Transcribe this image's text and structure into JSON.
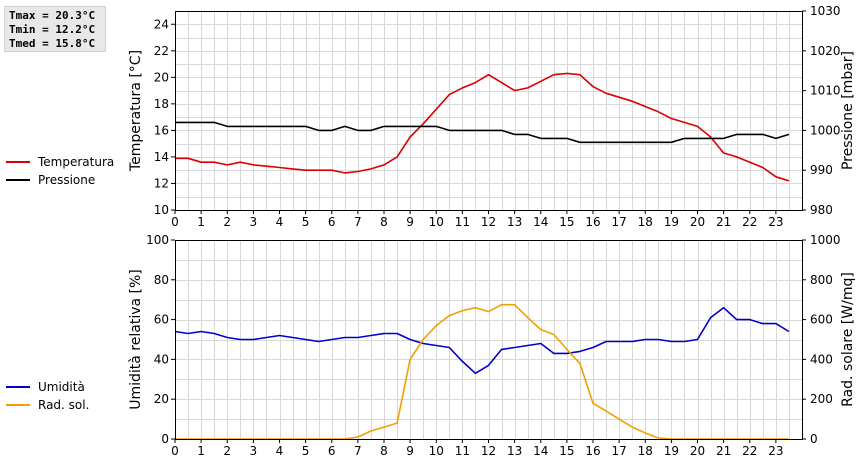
{
  "stats": {
    "tmax": "Tmax = 20.3°C",
    "tmin": "Tmin = 12.2°C",
    "tmed": "Tmed = 15.8°C"
  },
  "colors": {
    "temperature": "#dd0000",
    "pressure": "#000000",
    "humidity": "#0000cc",
    "radiation": "#f0a000",
    "grid": "#d8d8d8"
  },
  "chart_data": [
    {
      "type": "line",
      "xlabel": "",
      "ylabel": "Temperatura [°C]",
      "ylabel_right": "Pressione [mbar]",
      "xlim": [
        0,
        24
      ],
      "ylim": [
        10,
        25
      ],
      "ylim_right": [
        980,
        1030
      ],
      "xticks": [
        "0",
        "1",
        "2",
        "3",
        "4",
        "5",
        "6",
        "7",
        "8",
        "9",
        "10",
        "11",
        "12",
        "13",
        "14",
        "15",
        "16",
        "17",
        "18",
        "19",
        "20",
        "21",
        "22",
        "23"
      ],
      "yticks": [
        "10",
        "12",
        "14",
        "16",
        "18",
        "20",
        "22",
        "24"
      ],
      "yticks_right": [
        "980",
        "990",
        "1000",
        "1010",
        "1020",
        "1030"
      ],
      "grid": true,
      "legend_position": "left",
      "series": [
        {
          "name": "Temperatura",
          "axis": "left",
          "color": "#dd0000",
          "x": [
            0,
            0.5,
            1,
            1.5,
            2,
            2.5,
            3,
            3.5,
            4,
            4.5,
            5,
            5.5,
            6,
            6.5,
            7,
            7.5,
            8,
            8.5,
            9,
            9.5,
            10,
            10.5,
            11,
            11.5,
            12,
            12.5,
            13,
            13.5,
            14,
            14.5,
            15,
            15.5,
            16,
            16.5,
            17,
            17.5,
            18,
            18.5,
            19,
            19.5,
            20,
            20.5,
            21,
            21.5,
            22,
            22.5,
            23,
            23.5
          ],
          "values": [
            13.9,
            13.9,
            13.6,
            13.6,
            13.4,
            13.6,
            13.4,
            13.3,
            13.2,
            13.1,
            13.0,
            13.0,
            13.0,
            12.8,
            12.9,
            13.1,
            13.4,
            14.0,
            15.5,
            16.5,
            17.6,
            18.7,
            19.2,
            19.6,
            20.2,
            19.6,
            19.0,
            19.2,
            19.7,
            20.2,
            20.3,
            20.2,
            19.3,
            18.8,
            18.5,
            18.2,
            17.8,
            17.4,
            16.9,
            16.6,
            16.3,
            15.5,
            14.3,
            14.0,
            13.6,
            13.2,
            12.5,
            12.2
          ]
        },
        {
          "name": "Pressione",
          "axis": "right",
          "color": "#000000",
          "x": [
            0,
            0.5,
            1,
            1.5,
            2,
            2.5,
            3,
            3.5,
            4,
            4.5,
            5,
            5.5,
            6,
            6.5,
            7,
            7.5,
            8,
            8.5,
            9,
            9.5,
            10,
            10.5,
            11,
            11.5,
            12,
            12.5,
            13,
            13.5,
            14,
            14.5,
            15,
            15.5,
            16,
            16.5,
            17,
            17.5,
            18,
            18.5,
            19,
            19.5,
            20,
            20.5,
            21,
            21.5,
            22,
            22.5,
            23,
            23.5
          ],
          "values": [
            1002,
            1002,
            1002,
            1002,
            1001,
            1001,
            1001,
            1001,
            1001,
            1001,
            1001,
            1000,
            1000,
            1001,
            1000,
            1000,
            1001,
            1001,
            1001,
            1001,
            1001,
            1000,
            1000,
            1000,
            1000,
            1000,
            999,
            999,
            998,
            998,
            998,
            997,
            997,
            997,
            997,
            997,
            997,
            997,
            997,
            998,
            998,
            998,
            998,
            999,
            999,
            999,
            998,
            999
          ]
        }
      ]
    },
    {
      "type": "line",
      "xlabel": "",
      "ylabel": "Umidità relativa [%]",
      "ylabel_right": "Rad. solare [W/mq]",
      "xlim": [
        0,
        24
      ],
      "ylim": [
        0,
        100
      ],
      "ylim_right": [
        0,
        1000
      ],
      "xticks": [
        "0",
        "1",
        "2",
        "3",
        "4",
        "5",
        "6",
        "7",
        "8",
        "9",
        "10",
        "11",
        "12",
        "13",
        "14",
        "15",
        "16",
        "17",
        "18",
        "19",
        "20",
        "21",
        "22",
        "23"
      ],
      "yticks": [
        "0",
        "20",
        "40",
        "60",
        "80",
        "100"
      ],
      "yticks_right": [
        "0",
        "200",
        "400",
        "600",
        "800",
        "1000"
      ],
      "grid": true,
      "legend_position": "left",
      "series": [
        {
          "name": "Umidità",
          "axis": "left",
          "color": "#0000cc",
          "x": [
            0,
            0.5,
            1,
            1.5,
            2,
            2.5,
            3,
            3.5,
            4,
            4.5,
            5,
            5.5,
            6,
            6.5,
            7,
            7.5,
            8,
            8.5,
            9,
            9.5,
            10,
            10.5,
            11,
            11.5,
            12,
            12.5,
            13,
            13.5,
            14,
            14.5,
            15,
            15.5,
            16,
            16.5,
            17,
            17.5,
            18,
            18.5,
            19,
            19.5,
            20,
            20.5,
            21,
            21.5,
            22,
            22.5,
            23,
            23.5
          ],
          "values": [
            54,
            53,
            54,
            53,
            51,
            50,
            50,
            51,
            52,
            51,
            50,
            49,
            50,
            51,
            51,
            52,
            53,
            53,
            50,
            48,
            47,
            46,
            39,
            33,
            37,
            45,
            46,
            47,
            48,
            43,
            43,
            44,
            46,
            49,
            49,
            49,
            50,
            50,
            49,
            49,
            50,
            61,
            66,
            60,
            60,
            58,
            58,
            54
          ]
        },
        {
          "name": "Rad. sol.",
          "axis": "right",
          "color": "#f0a000",
          "x": [
            0,
            0.5,
            1,
            1.5,
            2,
            2.5,
            3,
            3.5,
            4,
            4.5,
            5,
            5.5,
            6,
            6.5,
            7,
            7.5,
            8,
            8.5,
            9,
            9.5,
            10,
            10.5,
            11,
            11.5,
            12,
            12.5,
            13,
            13.5,
            14,
            14.5,
            15,
            15.5,
            16,
            16.5,
            17,
            17.5,
            18,
            18.5,
            19,
            19.5,
            20,
            20.5,
            21,
            21.5,
            22,
            22.5,
            23,
            23.5
          ],
          "values": [
            0,
            0,
            0,
            0,
            0,
            0,
            0,
            0,
            0,
            0,
            0,
            0,
            0,
            0,
            10,
            40,
            60,
            80,
            400,
            500,
            570,
            620,
            645,
            660,
            640,
            675,
            675,
            610,
            550,
            525,
            450,
            380,
            180,
            140,
            100,
            60,
            30,
            5,
            0,
            0,
            0,
            0,
            0,
            0,
            0,
            0,
            0,
            0
          ]
        }
      ]
    }
  ]
}
